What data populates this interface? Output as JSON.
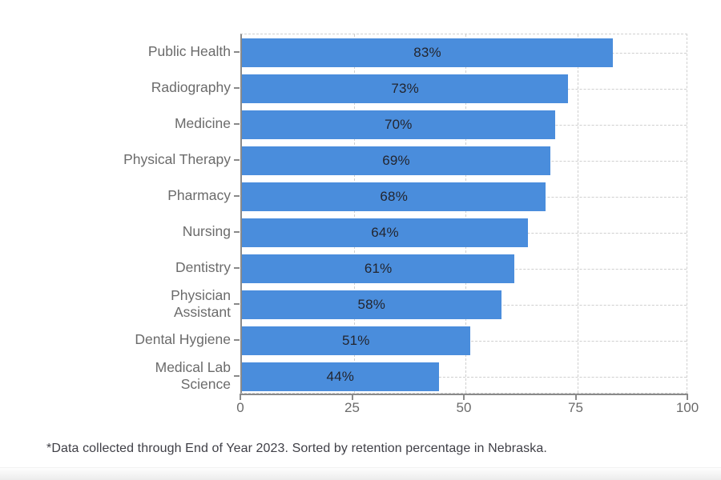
{
  "chart_data": {
    "type": "bar",
    "orientation": "horizontal",
    "categories": [
      "Public Health",
      "Radiography",
      "Medicine",
      "Physical Therapy",
      "Pharmacy",
      "Nursing",
      "Dentistry",
      "Physician\nAssistant",
      "Dental Hygiene",
      "Medical Lab\nScience"
    ],
    "values": [
      83,
      73,
      70,
      69,
      68,
      64,
      61,
      58,
      51,
      44
    ],
    "value_labels": [
      "83%",
      "73%",
      "70%",
      "69%",
      "68%",
      "64%",
      "61%",
      "58%",
      "51%",
      "44%"
    ],
    "xlim": [
      0,
      100
    ],
    "x_ticks": [
      0,
      25,
      50,
      75,
      100
    ],
    "grid_style": "dashed",
    "legend": "none",
    "bar_color": "#4a8ddc",
    "data_label_color": "#23252e",
    "axis_text_color": "#6b6b6b",
    "gridline_color": "#cfcfcf",
    "axis_line_color": "#8a8a8a"
  },
  "footnote": "*Data collected through End of Year 2023. Sorted by retention percentage in Nebraska."
}
